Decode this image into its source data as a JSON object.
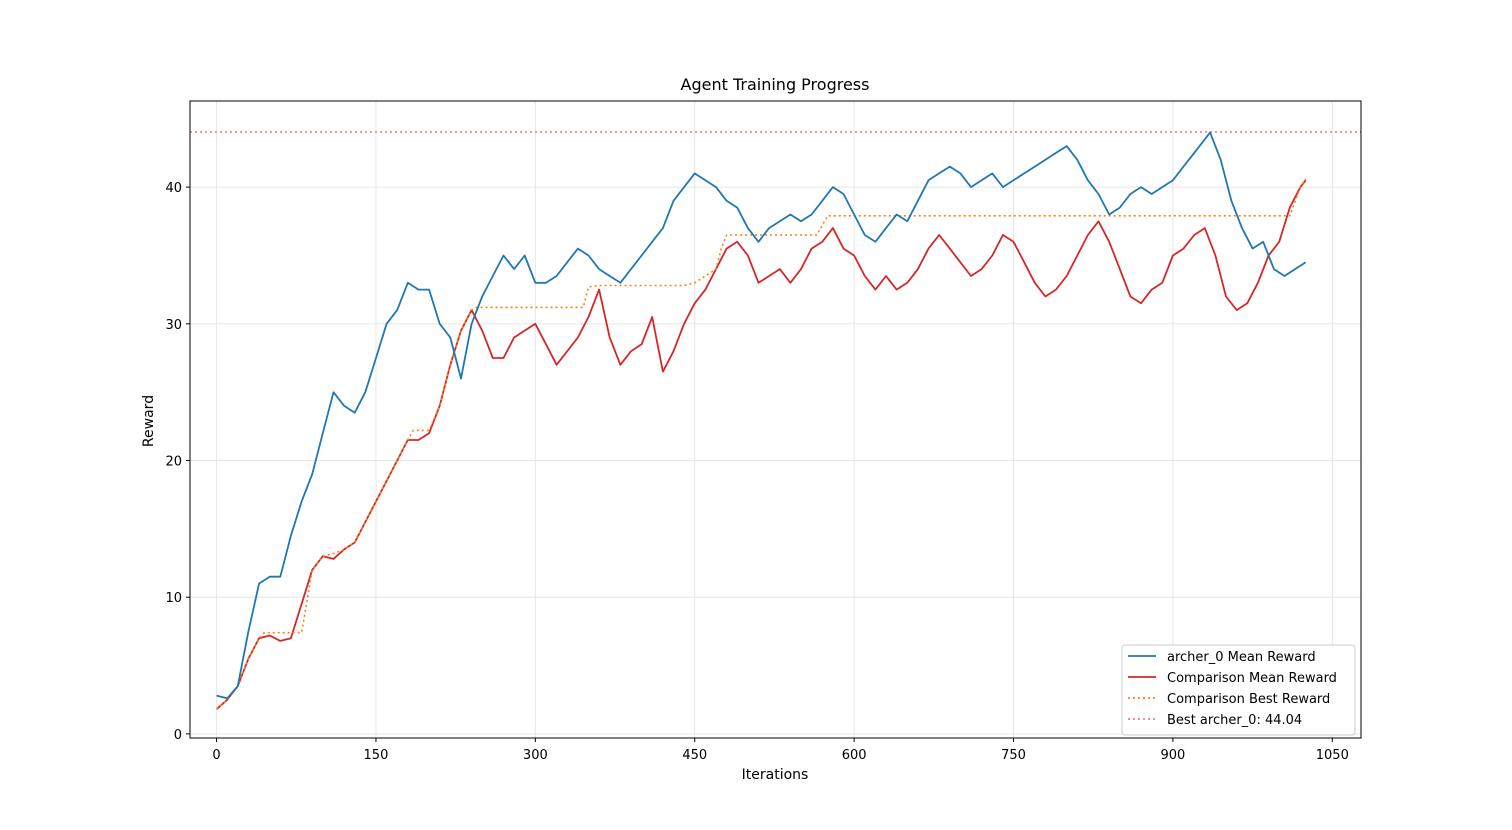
{
  "chart_data": {
    "type": "line",
    "title": "Agent Training Progress",
    "xlabel": "Iterations",
    "ylabel": "Reward",
    "xlim": [
      -25,
      1077
    ],
    "ylim": [
      -0.3,
      46.3
    ],
    "xticks": [
      0,
      150,
      300,
      450,
      600,
      750,
      900,
      1050
    ],
    "yticks": [
      0,
      10,
      20,
      30,
      40
    ],
    "grid": true,
    "legend_position": "lower-right",
    "series": [
      {
        "name": "archer_0 Mean Reward",
        "color": "#1f77b4",
        "style": "solid",
        "x": [
          0,
          10,
          20,
          30,
          40,
          50,
          60,
          70,
          80,
          90,
          100,
          110,
          120,
          130,
          140,
          150,
          160,
          170,
          180,
          190,
          200,
          210,
          220,
          230,
          240,
          250,
          260,
          270,
          280,
          290,
          300,
          310,
          320,
          330,
          340,
          350,
          360,
          370,
          380,
          390,
          400,
          410,
          420,
          430,
          440,
          450,
          460,
          470,
          480,
          490,
          500,
          510,
          520,
          530,
          540,
          550,
          560,
          570,
          580,
          590,
          600,
          610,
          620,
          630,
          640,
          650,
          660,
          670,
          680,
          690,
          700,
          710,
          720,
          730,
          740,
          750,
          760,
          770,
          780,
          790,
          800,
          810,
          820,
          830,
          840,
          850,
          860,
          870,
          880,
          890,
          900,
          910,
          920,
          930,
          935,
          945,
          955,
          965,
          975,
          985,
          995,
          1005,
          1015,
          1025
        ],
        "values": [
          2.8,
          2.6,
          3.5,
          7.5,
          11.0,
          11.5,
          11.5,
          14.5,
          17.0,
          19.0,
          22.0,
          25.0,
          24.0,
          23.5,
          25.0,
          27.5,
          30.0,
          31.0,
          33.0,
          32.5,
          32.5,
          30.0,
          29.0,
          26.0,
          30.0,
          32.0,
          33.5,
          35.0,
          34.0,
          35.0,
          33.0,
          33.0,
          33.5,
          34.5,
          35.5,
          35.0,
          34.0,
          33.5,
          33.0,
          34.0,
          35.0,
          36.0,
          37.0,
          39.0,
          40.0,
          41.0,
          40.5,
          40.0,
          39.0,
          38.5,
          37.0,
          36.0,
          37.0,
          37.5,
          38.0,
          37.5,
          38.0,
          39.0,
          40.0,
          39.5,
          38.0,
          36.5,
          36.0,
          37.0,
          38.0,
          37.5,
          39.0,
          40.5,
          41.0,
          41.5,
          41.0,
          40.0,
          40.5,
          41.0,
          40.0,
          40.5,
          41.0,
          41.5,
          42.0,
          42.5,
          43.0,
          42.0,
          40.5,
          39.5,
          38.0,
          38.5,
          39.5,
          40.0,
          39.5,
          40.0,
          40.5,
          41.5,
          42.5,
          43.5,
          44.0,
          42.0,
          39.0,
          37.0,
          35.5,
          36.0,
          34.0,
          33.5,
          34.0,
          34.5
        ]
      },
      {
        "name": "Comparison Mean Reward",
        "color": "#d62728",
        "style": "solid",
        "x": [
          0,
          10,
          20,
          30,
          40,
          50,
          60,
          70,
          80,
          90,
          100,
          110,
          120,
          130,
          140,
          150,
          160,
          170,
          180,
          190,
          200,
          210,
          220,
          230,
          240,
          250,
          260,
          270,
          280,
          290,
          300,
          310,
          320,
          330,
          340,
          350,
          360,
          370,
          380,
          390,
          400,
          410,
          420,
          430,
          440,
          450,
          460,
          470,
          480,
          490,
          500,
          510,
          520,
          530,
          540,
          550,
          560,
          570,
          580,
          590,
          600,
          610,
          620,
          630,
          640,
          650,
          660,
          670,
          680,
          690,
          700,
          710,
          720,
          730,
          740,
          750,
          760,
          770,
          780,
          790,
          800,
          810,
          820,
          830,
          840,
          850,
          860,
          870,
          880,
          890,
          900,
          910,
          920,
          930,
          940,
          950,
          960,
          970,
          980,
          990,
          1000,
          1010,
          1020,
          1025
        ],
        "values": [
          1.8,
          2.5,
          3.5,
          5.5,
          7.0,
          7.2,
          6.8,
          7.0,
          9.5,
          12.0,
          13.0,
          12.8,
          13.5,
          14.0,
          15.5,
          17.0,
          18.5,
          20.0,
          21.5,
          21.5,
          22.0,
          24.0,
          27.0,
          29.5,
          31.0,
          29.5,
          27.5,
          27.5,
          29.0,
          29.5,
          30.0,
          28.5,
          27.0,
          28.0,
          29.0,
          30.5,
          32.5,
          29.0,
          27.0,
          28.0,
          28.5,
          30.5,
          26.5,
          28.0,
          30.0,
          31.5,
          32.5,
          34.0,
          35.5,
          36.0,
          35.0,
          33.0,
          33.5,
          34.0,
          33.0,
          34.0,
          35.5,
          36.0,
          37.0,
          35.5,
          35.0,
          33.5,
          32.5,
          33.5,
          32.5,
          33.0,
          34.0,
          35.5,
          36.5,
          35.5,
          34.5,
          33.5,
          34.0,
          35.0,
          36.5,
          36.0,
          34.5,
          33.0,
          32.0,
          32.5,
          33.5,
          35.0,
          36.5,
          37.5,
          36.0,
          34.0,
          32.0,
          31.5,
          32.5,
          33.0,
          35.0,
          35.5,
          36.5,
          37.0,
          35.0,
          32.0,
          31.0,
          31.5,
          33.0,
          35.0,
          36.0,
          38.5,
          40.0,
          40.5
        ]
      },
      {
        "name": "Comparison Best Reward",
        "color": "#ff7f0e",
        "style": "dotted",
        "x": [
          0,
          10,
          20,
          30,
          40,
          45,
          80,
          90,
          100,
          110,
          120,
          130,
          140,
          150,
          160,
          170,
          180,
          185,
          200,
          210,
          220,
          230,
          240,
          245,
          250,
          345,
          350,
          360,
          440,
          450,
          460,
          470,
          475,
          480,
          565,
          575,
          1010,
          1020,
          1025
        ],
        "values": [
          1.8,
          2.5,
          3.5,
          5.5,
          7.0,
          7.4,
          7.4,
          12.0,
          13.0,
          13.2,
          13.5,
          14.0,
          15.5,
          17.0,
          18.5,
          20.0,
          21.5,
          22.2,
          22.2,
          24.0,
          27.0,
          29.5,
          31.0,
          31.2,
          31.2,
          31.2,
          32.7,
          32.8,
          32.8,
          33.0,
          33.5,
          34.0,
          35.5,
          36.5,
          36.5,
          37.9,
          37.9,
          40.0,
          40.6
        ]
      }
    ],
    "reference_lines": [
      {
        "name": "Best archer_0: 44.04",
        "value": 44.04,
        "color": "#f08080",
        "style": "dotted"
      }
    ]
  }
}
